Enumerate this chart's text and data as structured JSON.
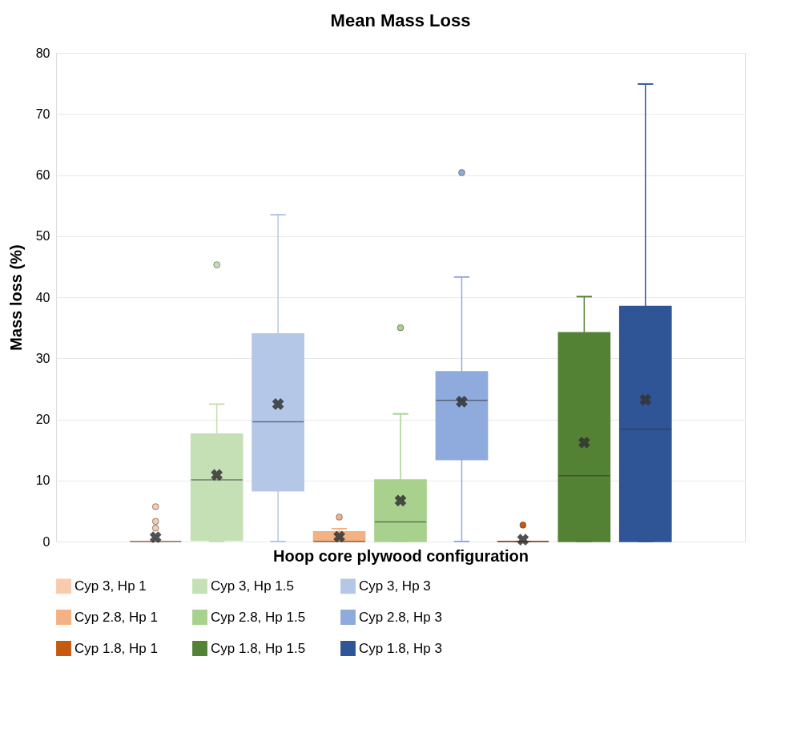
{
  "chart_data": {
    "type": "box",
    "title": "Mean Mass Loss",
    "xlabel": "Hoop core plywood configuration",
    "ylabel": "Mass loss (%)",
    "categories": [
      null
    ],
    "series": [
      {
        "name": "Cyp 3,    Hp 1",
        "color": "#f8cbad",
        "boxes": [
          {
            "low": 0,
            "q1": 0,
            "median": 0,
            "q3": 0,
            "high": 0,
            "mean": 0.7,
            "outliers": [
              5.7,
              3.3,
              2.2
            ]
          }
        ]
      },
      {
        "name": "Cyp 3,    Hp 1.5",
        "color": "#c5e0b4",
        "boxes": [
          {
            "low": 0,
            "q1": 0.2,
            "median": 10.1,
            "q3": 17.6,
            "high": 22.5,
            "mean": 10.9,
            "outliers": [
              45.3
            ]
          }
        ]
      },
      {
        "name": "Cyp 3,    Hp 3",
        "color": "#b4c7e7",
        "boxes": [
          {
            "low": 0,
            "q1": 8.3,
            "median": 19.6,
            "q3": 34.0,
            "high": 53.5,
            "mean": 22.5
          }
        ]
      },
      {
        "name": "Cyp 2.8, Hp 1",
        "color": "#f4b183",
        "boxes": [
          {
            "low": 0,
            "q1": 0,
            "median": 0,
            "q3": 1.6,
            "high": 2.1,
            "mean": 0.8,
            "outliers": [
              4.0
            ]
          }
        ]
      },
      {
        "name": "Cyp 2.8, Hp 1.5",
        "color": "#a9d18e",
        "boxes": [
          {
            "low": 0,
            "q1": 0,
            "median": 3.2,
            "q3": 10.1,
            "high": 20.9,
            "mean": 6.7,
            "outliers": [
              35.0
            ]
          }
        ]
      },
      {
        "name": "Cyp 2.8, Hp 3",
        "color": "#8faadc",
        "boxes": [
          {
            "low": 0,
            "q1": 13.4,
            "median": 23.1,
            "q3": 27.8,
            "high": 43.3,
            "mean": 22.9,
            "outliers": [
              60.4
            ]
          }
        ]
      },
      {
        "name": "Cyp 1.8, Hp 1",
        "color": "#c55a11",
        "boxes": [
          {
            "low": 0,
            "q1": 0,
            "median": 0,
            "q3": 0,
            "high": 0,
            "mean": 0.3,
            "outliers": [
              2.7
            ]
          }
        ]
      },
      {
        "name": "Cyp 1.8, Hp 1.5",
        "color": "#548235",
        "boxes": [
          {
            "low": 0,
            "q1": 0,
            "median": 10.8,
            "q3": 34.2,
            "high": 40.1,
            "mean": 16.2
          }
        ]
      },
      {
        "name": "Cyp 1.8, Hp 3",
        "color": "#2f5597",
        "boxes": [
          {
            "low": 0,
            "q1": 0,
            "median": 18.4,
            "q3": 38.5,
            "high": 74.9,
            "mean": 23.2
          }
        ]
      }
    ],
    "ylim": [
      0,
      80
    ],
    "yticks": [
      0,
      10,
      20,
      30,
      40,
      50,
      60,
      70,
      80
    ],
    "grid": "y",
    "legend": "bottom"
  }
}
